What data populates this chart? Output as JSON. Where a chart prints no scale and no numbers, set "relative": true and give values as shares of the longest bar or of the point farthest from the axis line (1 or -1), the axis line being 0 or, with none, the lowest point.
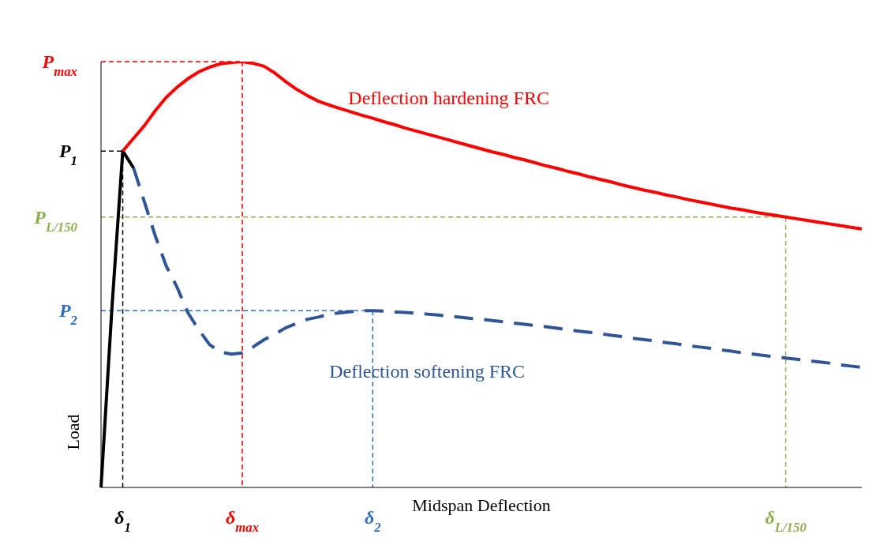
{
  "chart_data": {
    "type": "line",
    "relative": true,
    "xlabel": "Midspan Deflection",
    "ylabel": "Load",
    "categories": [
      null,
      null,
      "δ$_{1}$",
      null,
      null,
      null,
      null,
      null,
      null,
      null,
      null,
      null,
      null,
      "δ$_{max}$",
      null,
      null,
      null,
      null,
      null,
      null,
      null,
      null,
      null,
      null,
      null,
      "δ$_{2}$",
      null,
      null,
      null,
      null,
      null,
      null,
      null,
      null,
      null,
      null,
      null,
      null,
      null,
      null,
      null,
      null,
      null,
      null,
      null,
      null,
      null,
      null,
      null,
      null,
      null,
      null,
      null,
      null,
      null,
      null,
      null,
      null,
      null,
      null,
      null,
      null,
      null,
      "δ$_{L/150}$",
      null,
      null,
      null,
      null,
      null,
      null,
      null
    ],
    "series": [
      {
        "color": "#000000",
        "line_style": "solid",
        "values": [
          0.0,
          0.42,
          0.79,
          0.75,
          null,
          null,
          null,
          null,
          null,
          null,
          null,
          null,
          null,
          null,
          null,
          null,
          null,
          null,
          null,
          null,
          null,
          null,
          null,
          null,
          null,
          null,
          null,
          null,
          null,
          null,
          null,
          null,
          null,
          null,
          null,
          null,
          null,
          null,
          null,
          null,
          null,
          null,
          null,
          null,
          null,
          null,
          null,
          null,
          null,
          null,
          null,
          null,
          null,
          null,
          null,
          null,
          null,
          null,
          null,
          null,
          null,
          null,
          null,
          null,
          null,
          null,
          null,
          null,
          null,
          null,
          null
        ]
      },
      {
        "name": "Deflection hardening FRC",
        "color": "#ff0000",
        "line_style": "solid",
        "values": [
          null,
          null,
          0.79,
          0.82,
          0.85,
          0.885,
          0.916,
          0.94,
          0.96,
          0.976,
          0.987,
          0.995,
          0.998,
          1,
          0.996,
          0.989,
          0.973,
          0.953,
          0.935,
          0.92,
          0.907,
          0.898,
          0.89,
          0.882,
          0.874,
          0.867,
          0.859,
          0.852,
          0.844,
          0.837,
          0.83,
          0.823,
          0.816,
          0.809,
          0.802,
          0.795,
          0.788,
          0.782,
          0.775,
          0.769,
          0.762,
          0.755,
          0.749,
          0.742,
          0.736,
          0.729,
          0.723,
          0.717,
          0.71,
          0.704,
          0.698,
          0.693,
          0.687,
          0.682,
          0.676,
          0.671,
          0.666,
          0.661,
          0.656,
          0.652,
          0.647,
          0.643,
          0.639,
          0.635,
          0.631,
          0.627,
          0.623,
          0.619,
          0.615,
          0.611,
          0.607
        ]
      },
      {
        "name": "Deflection softening FRC",
        "color": "#2f5597",
        "line_style": "dashed",
        "values": [
          null,
          null,
          null,
          0.75,
          0.67,
          0.59,
          0.52,
          0.47,
          0.41,
          0.37,
          0.335,
          0.318,
          0.313,
          0.316,
          0.33,
          0.347,
          0.36,
          0.375,
          0.385,
          0.395,
          0.4,
          0.407,
          0.41,
          0.413,
          0.415,
          0.415,
          0.414,
          0.412,
          0.411,
          0.409,
          0.407,
          0.405,
          0.402,
          0.4,
          0.397,
          0.395,
          0.392,
          0.389,
          0.386,
          0.383,
          0.38,
          0.377,
          0.374,
          0.37,
          0.367,
          0.364,
          0.361,
          0.357,
          0.354,
          0.35,
          0.347,
          0.344,
          0.34,
          0.337,
          0.333,
          0.33,
          0.327,
          0.323,
          0.32,
          0.316,
          0.313,
          0.31,
          0.307,
          0.304,
          0.301,
          0.298,
          0.295,
          0.292,
          0.288,
          0.285,
          0.282
        ]
      }
    ],
    "ref_lines": [
      {
        "axis": "y",
        "value": 1,
        "label": "P$_{max}$",
        "color": "#ff0000",
        "line_style": "dashed"
      },
      {
        "axis": "y",
        "value": 0.79,
        "label": "P$_{1}$",
        "color": "#000000",
        "line_style": "dashed"
      },
      {
        "axis": "y",
        "value": 0.635,
        "label": "P$_{L/150}$",
        "color": "#8db04f",
        "line_style": "dashed"
      },
      {
        "axis": "y",
        "value": 0.415,
        "label": "P$_{2}$",
        "color": "#2f6fbf",
        "line_style": "dashed"
      },
      {
        "axis": "x",
        "value": "δ$_{max}$",
        "color": "#ff0000",
        "line_style": "dashed"
      },
      {
        "axis": "x",
        "value": "δ$_{1}$",
        "color": "#000000",
        "line_style": "dashed"
      },
      {
        "axis": "x",
        "value": "δ$_{L/150}$",
        "color": "#8db04f",
        "line_style": "dashed"
      },
      {
        "axis": "x",
        "value": "δ$_{2}$",
        "color": "#2f6fbf",
        "line_style": "dashed"
      }
    ]
  }
}
